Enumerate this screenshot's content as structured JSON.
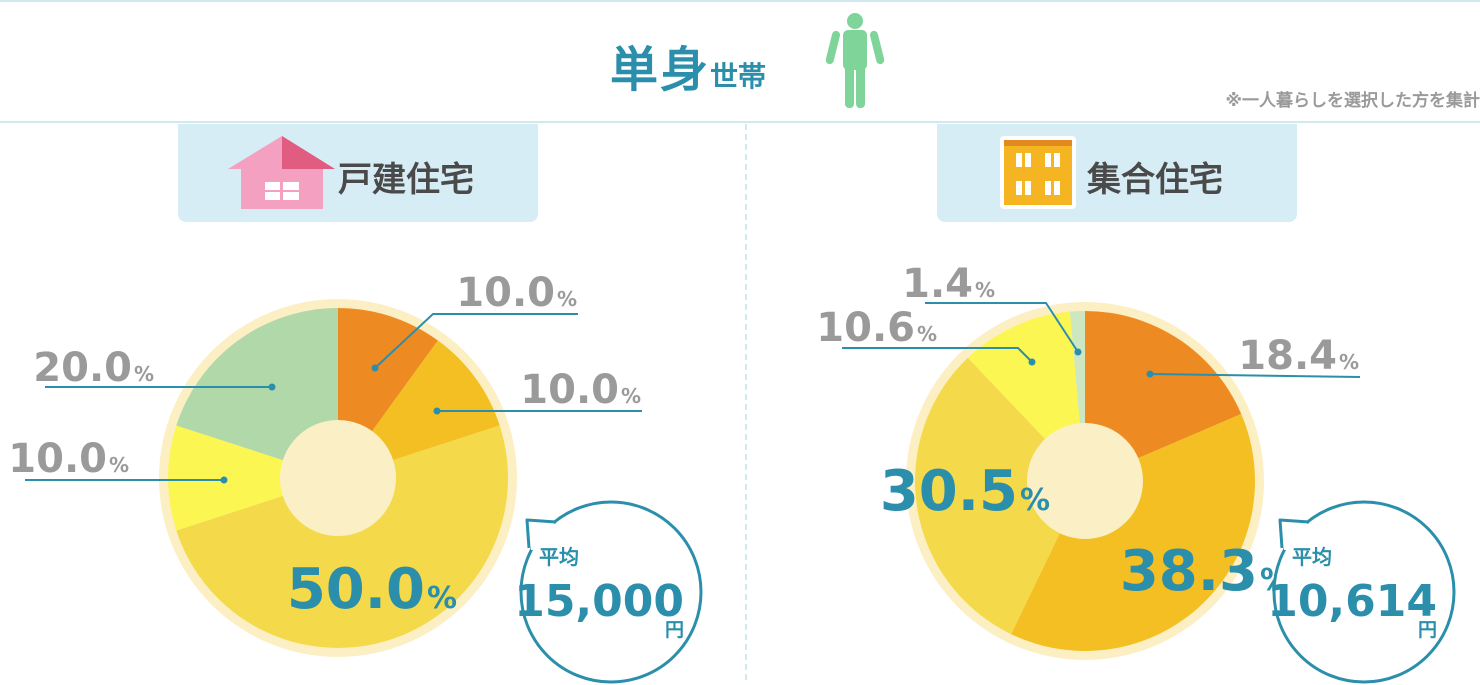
{
  "header": {
    "title_main": "単身",
    "title_sub": "世帯",
    "note": "※一人暮らしを選択した方を集計"
  },
  "panels": [
    {
      "label": "戸建住宅"
    },
    {
      "label": "集合住宅"
    }
  ],
  "chart_data": [
    {
      "type": "pie",
      "title": "戸建住宅",
      "unit": "%",
      "slices": [
        {
          "value": 10.0,
          "label": "10.0",
          "color": "#ee8a22"
        },
        {
          "value": 10.0,
          "label": "10.0",
          "color": "#f4bf22"
        },
        {
          "value": 50.0,
          "label": "50.0",
          "color": "#f4da4a"
        },
        {
          "value": 10.0,
          "label": "10.0",
          "color": "#fcf653"
        },
        {
          "value": 20.0,
          "label": "20.0",
          "color": "#b0d8a8"
        }
      ],
      "average": {
        "label": "平均",
        "value": "15,000",
        "unit": "円"
      }
    },
    {
      "type": "pie",
      "title": "集合住宅",
      "unit": "%",
      "slices": [
        {
          "value": 18.4,
          "label": "18.4",
          "color": "#ee8a22"
        },
        {
          "value": 38.3,
          "label": "38.3",
          "color": "#f4bf22"
        },
        {
          "value": 30.5,
          "label": "30.5",
          "color": "#f4da4a"
        },
        {
          "value": 10.6,
          "label": "10.6",
          "color": "#fcf653"
        },
        {
          "value": 1.4,
          "label": "1.4",
          "color": "#cde8c0"
        }
      ],
      "average": {
        "label": "平均",
        "value": "10,614",
        "unit": "円"
      }
    }
  ]
}
